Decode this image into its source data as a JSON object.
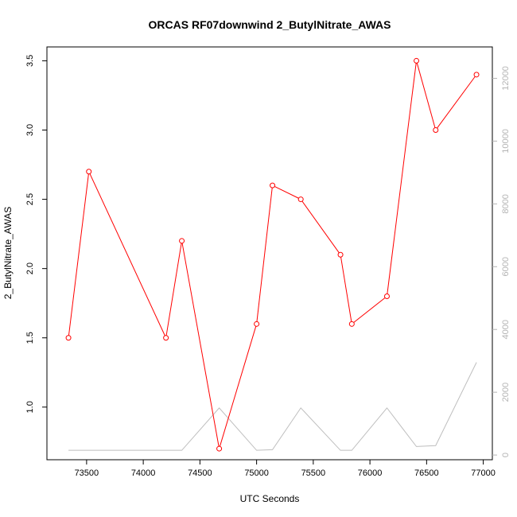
{
  "chart_data": {
    "type": "line",
    "title": "ORCAS RF07downwind 2_ButylNitrate_AWAS",
    "xlabel": "UTC Seconds",
    "ylabel": "2_ButylNitrate_AWAS",
    "xlim": [
      73150,
      77080
    ],
    "ylim": [
      0.62,
      3.6
    ],
    "y2lim": [
      -150,
      13000
    ],
    "x_ticks": [
      73500,
      74000,
      74500,
      75000,
      75500,
      76000,
      76500,
      77000
    ],
    "y_ticks": [
      1.0,
      1.5,
      2.0,
      2.5,
      3.0,
      3.5
    ],
    "y_tick_labels": [
      "1.0",
      "1.5",
      "2.0",
      "2.5",
      "3.0",
      "3.5"
    ],
    "y2_ticks": [
      0,
      2000,
      4000,
      6000,
      8000,
      10000,
      12000
    ],
    "grid": false,
    "colors": {
      "primary": "#ff0000",
      "secondary": "#bebebe",
      "secondary_axis": "#b4b4b4"
    },
    "series": [
      {
        "axis": "left",
        "marker": "circle",
        "x": [
          73340,
          73520,
          74200,
          74340,
          74670,
          75000,
          75140,
          75390,
          75740,
          75840,
          76150,
          76410,
          76580,
          76940
        ],
        "values": [
          1.5,
          2.7,
          1.5,
          2.2,
          0.7,
          1.6,
          2.6,
          2.5,
          2.1,
          1.6,
          1.8,
          3.5,
          3.0,
          3.4
        ]
      },
      {
        "axis": "right",
        "marker": "none",
        "x": [
          73340,
          74340,
          74670,
          75000,
          75140,
          75390,
          75740,
          75840,
          76150,
          76410,
          76580,
          76940
        ],
        "values": [
          150,
          150,
          1500,
          150,
          170,
          1500,
          150,
          150,
          1500,
          270,
          300,
          2950
        ]
      }
    ]
  }
}
